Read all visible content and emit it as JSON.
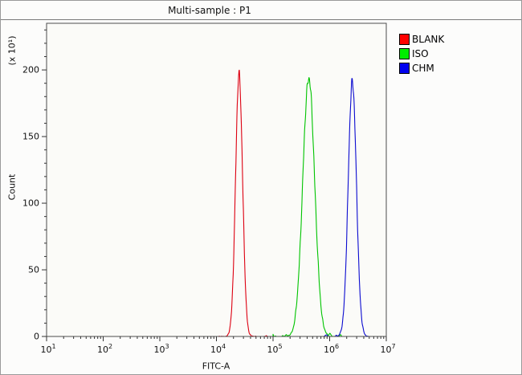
{
  "chart_data": {
    "type": "line",
    "title": "Multi-sample : P1",
    "xlabel": "FITC-A",
    "ylabel": "Count",
    "y_axis_multiplier": "(x 10¹)",
    "x_scale": "log10",
    "x_log_range": [
      1,
      7
    ],
    "ylim": [
      0,
      235
    ],
    "y_major_ticks": [
      0,
      50,
      100,
      150,
      200
    ],
    "y_minor_step": 10,
    "x_tick_base": "10",
    "x_tick_exponents": [
      1,
      2,
      3,
      4,
      5,
      6,
      7
    ],
    "grid": false,
    "legend": {
      "position": "top-right",
      "entries": [
        {
          "label": "BLANK",
          "color": "#ff0000"
        },
        {
          "label": "ISO",
          "color": "#00ee00"
        },
        {
          "label": "CHM",
          "color": "#0000ee"
        }
      ]
    },
    "series": [
      {
        "name": "BLANK",
        "color": "#dd0011",
        "peak": {
          "log10_center": 4.4,
          "center_value": 25000,
          "sigma_log10": 0.062,
          "height": 197
        },
        "baseline": {
          "from_log10": 4.05,
          "to_log10": 4.9,
          "noise": 0.4
        }
      },
      {
        "name": "ISO",
        "color": "#00c400",
        "peak": {
          "log10_center": 5.63,
          "center_value": 430000,
          "sigma_log10": 0.105,
          "height": 194
        },
        "baseline": {
          "from_log10": 5.0,
          "to_log10": 6.22,
          "noise": 2.0
        }
      },
      {
        "name": "CHM",
        "color": "#0b0bd0",
        "peak": {
          "log10_center": 6.4,
          "center_value": 2500000,
          "sigma_log10": 0.072,
          "height": 192
        },
        "baseline": {
          "from_log10": 5.9,
          "to_log10": 6.7,
          "noise": 1.3
        }
      }
    ]
  }
}
